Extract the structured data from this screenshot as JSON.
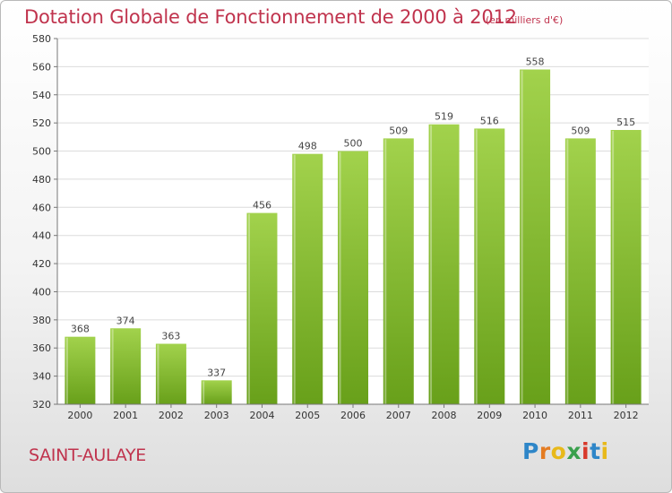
{
  "chart_data": {
    "type": "bar",
    "title": "Dotation Globale de Fonctionnement de 2000 à 2012",
    "subtitle": "(en milliers d'€)",
    "categories": [
      "2000",
      "2001",
      "2002",
      "2003",
      "2004",
      "2005",
      "2006",
      "2007",
      "2008",
      "2009",
      "2010",
      "2011",
      "2012"
    ],
    "values": [
      368,
      374,
      363,
      337,
      456,
      498,
      500,
      509,
      519,
      516,
      558,
      509,
      515
    ],
    "ylim": [
      320,
      580
    ],
    "yticks": [
      320,
      340,
      360,
      380,
      400,
      420,
      440,
      460,
      480,
      500,
      520,
      540,
      560,
      580
    ],
    "xlabel": "",
    "ylabel": "",
    "grid": true,
    "bar_color_top": "#a2d24c",
    "bar_color_bottom": "#68a01a"
  },
  "place_name": "SAINT-AULAYE",
  "logo": {
    "letters": [
      "P",
      "r",
      "o",
      "x",
      "i",
      "t",
      "i"
    ],
    "colors": [
      "#2e86c8",
      "#e47c22",
      "#e8b91a",
      "#3aa04d",
      "#d8392b",
      "#2e86c8",
      "#e8b91a"
    ]
  },
  "colors": {
    "title": "#c0334d",
    "grid": "#dcdcdc"
  }
}
